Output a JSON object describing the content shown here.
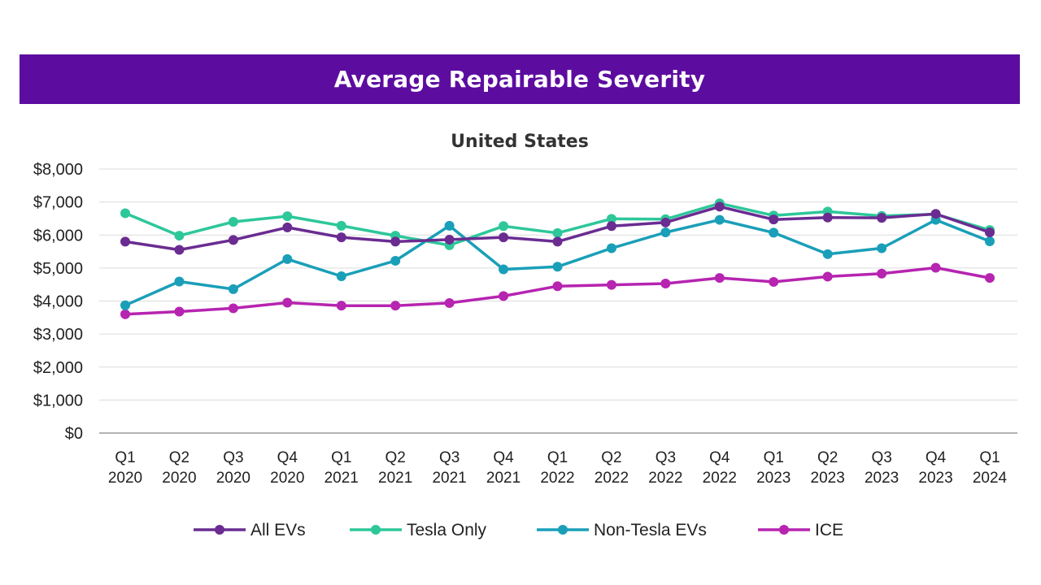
{
  "banner": {
    "title": "Average Repairable Severity",
    "color": "#5c0da0"
  },
  "chart_data": {
    "type": "line",
    "title": "United States",
    "xlabel": "",
    "ylabel": "",
    "ylim": [
      0,
      8000
    ],
    "yticks": [
      0,
      1000,
      2000,
      3000,
      4000,
      5000,
      6000,
      7000,
      8000
    ],
    "ytick_labels": [
      "$0",
      "$1,000",
      "$2,000",
      "$3,000",
      "$4,000",
      "$5,000",
      "$6,000",
      "$7,000",
      "$8,000"
    ],
    "grid": true,
    "legend_position": "bottom",
    "categories": [
      [
        "Q1",
        "2020"
      ],
      [
        "Q2",
        "2020"
      ],
      [
        "Q3",
        "2020"
      ],
      [
        "Q4",
        "2020"
      ],
      [
        "Q1",
        "2021"
      ],
      [
        "Q2",
        "2021"
      ],
      [
        "Q3",
        "2021"
      ],
      [
        "Q4",
        "2021"
      ],
      [
        "Q1",
        "2022"
      ],
      [
        "Q2",
        "2022"
      ],
      [
        "Q3",
        "2022"
      ],
      [
        "Q4",
        "2022"
      ],
      [
        "Q1",
        "2023"
      ],
      [
        "Q2",
        "2023"
      ],
      [
        "Q3",
        "2023"
      ],
      [
        "Q4",
        "2023"
      ],
      [
        "Q1",
        "2024"
      ]
    ],
    "series": [
      {
        "name": "All EVs",
        "color": "#6a2c91",
        "values": [
          5800,
          5550,
          5850,
          6230,
          5930,
          5800,
          5860,
          5930,
          5800,
          6270,
          6380,
          6860,
          6470,
          6530,
          6520,
          6640,
          6080
        ]
      },
      {
        "name": "Tesla Only",
        "color": "#2dc79a",
        "values": [
          6660,
          5980,
          6400,
          6570,
          6280,
          5980,
          5690,
          6270,
          6060,
          6490,
          6480,
          6960,
          6590,
          6710,
          6580,
          6630,
          6150
        ]
      },
      {
        "name": "Non-Tesla EVs",
        "color": "#1a9fb8",
        "values": [
          3870,
          4590,
          4360,
          5270,
          4750,
          5220,
          6280,
          4960,
          5040,
          5600,
          6080,
          6460,
          6070,
          5420,
          5600,
          6460,
          5810
        ]
      },
      {
        "name": "ICE",
        "color": "#b624b0",
        "values": [
          3600,
          3680,
          3780,
          3950,
          3860,
          3860,
          3940,
          4150,
          4450,
          4490,
          4530,
          4700,
          4580,
          4740,
          4830,
          5010,
          4700
        ]
      }
    ]
  }
}
